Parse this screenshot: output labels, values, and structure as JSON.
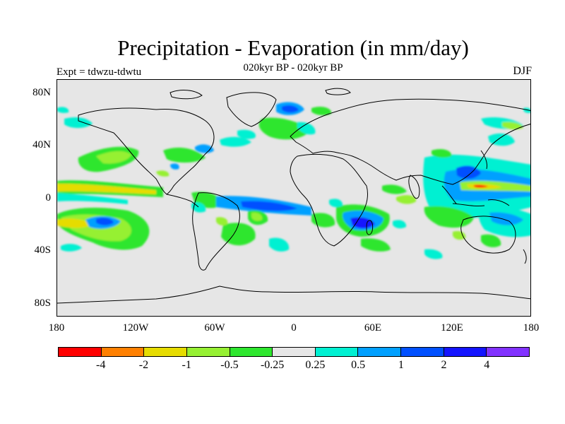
{
  "title": "Precipitation - Evaporation (in mm/day)",
  "subtitle": "020kyr BP - 020kyr BP",
  "expt_label": "Expt = tdwzu-tdwtu",
  "season": "DJF",
  "map": {
    "land_color": "#e6e6e6",
    "coast_color": "#000000",
    "y_ticks": [
      "80N",
      "40N",
      "0",
      "40S",
      "80S"
    ],
    "x_ticks": [
      "180",
      "120W",
      "60W",
      "0",
      "60E",
      "120E",
      "180"
    ]
  },
  "colorbar": {
    "colors": [
      "#ff0000",
      "#ff8000",
      "#e6dc00",
      "#96f032",
      "#2ee62e",
      "#e6e6e6",
      "#00f0d2",
      "#00a0ff",
      "#0050ff",
      "#1414ff",
      "#8232ff"
    ],
    "labels": [
      "-4",
      "-2",
      "-1",
      "-0.5",
      "-0.25",
      "0.25",
      "0.5",
      "1",
      "2",
      "4"
    ]
  }
}
